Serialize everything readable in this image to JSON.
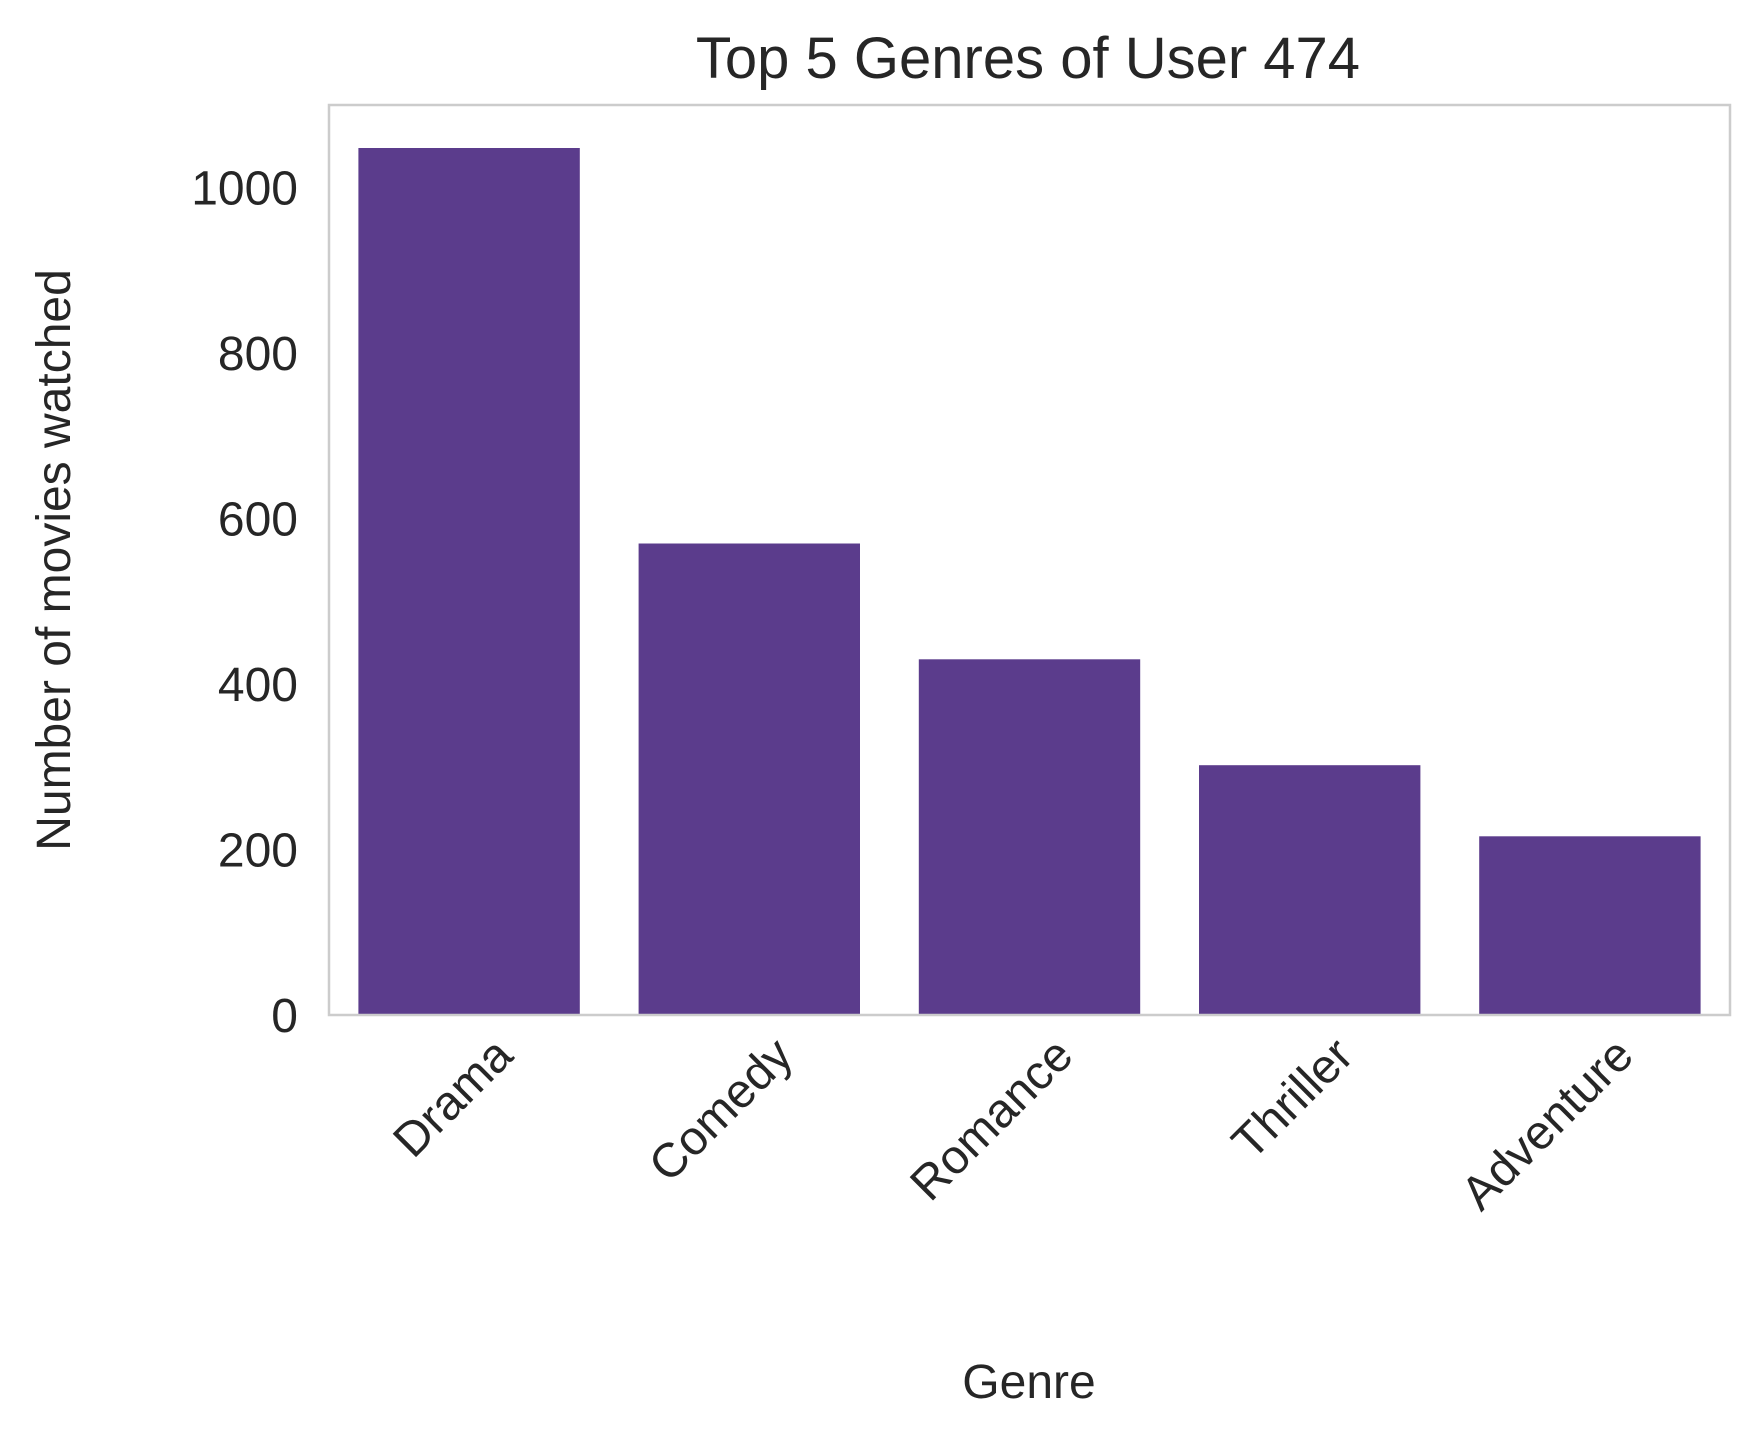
{
  "chart_data": {
    "type": "bar",
    "title": "Top 5 Genres of User 474",
    "xlabel": "Genre",
    "ylabel": "Number of movies watched",
    "categories": [
      "Drama",
      "Comedy",
      "Romance",
      "Thriller",
      "Adventure"
    ],
    "values": [
      1048,
      570,
      430,
      302,
      216
    ],
    "ylim": [
      0,
      1100
    ],
    "yticks": [
      "0",
      "200",
      "400",
      "600",
      "800",
      "1000"
    ],
    "grid": false,
    "bar_color": "#5b3c8c",
    "frame_color": "#cccccc",
    "text_color": "#262626"
  }
}
